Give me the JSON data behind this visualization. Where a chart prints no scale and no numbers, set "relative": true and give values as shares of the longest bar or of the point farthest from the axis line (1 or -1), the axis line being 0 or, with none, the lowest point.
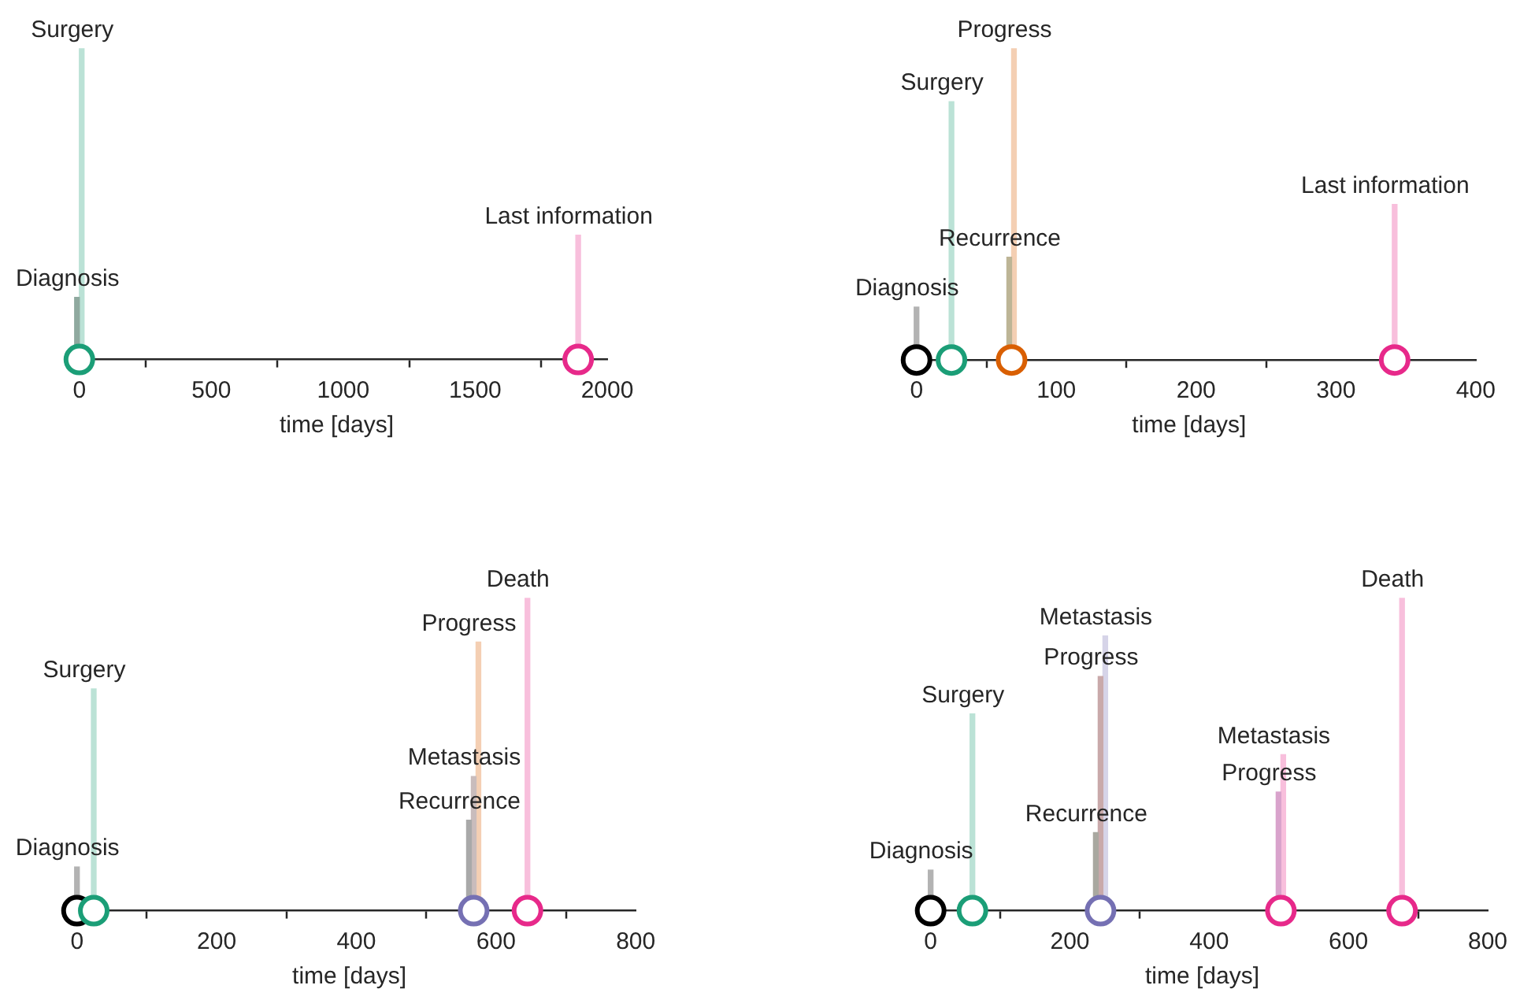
{
  "chart_data": [
    {
      "type": "bar",
      "relative": true,
      "x": [
        0,
        1890
      ],
      "xlim": [
        -50,
        2000
      ],
      "xticks": [
        0,
        500,
        1000,
        1500,
        2000
      ],
      "xlabel": "time [days]",
      "tick_labels": "x",
      "grid": false,
      "marker": "circle",
      "series": [
        {
          "name": "Diagnosis",
          "values": [
            0.2,
            null
          ],
          "color": "#8fa99f"
        },
        {
          "name": "Surgery",
          "values": [
            1,
            null
          ],
          "color": "#bbe2d6"
        },
        {
          "name": "Last information",
          "values": [
            null,
            0.4
          ],
          "color": "#f8bfdc"
        },
        {
          "type": "scatter",
          "values": [
            0,
            0
          ],
          "colors": [
            "#1b9e77",
            "#e7298a"
          ]
        }
      ]
    },
    {
      "type": "bar",
      "relative": true,
      "x": [
        0,
        25,
        68,
        342
      ],
      "xlim": [
        -10,
        400
      ],
      "xticks": [
        0,
        100,
        200,
        300,
        400
      ],
      "xlabel": "time [days]",
      "tick_labels": "x",
      "grid": false,
      "marker": "circle",
      "series": [
        {
          "name": "Diagnosis",
          "values": [
            0.17,
            null,
            null,
            null
          ],
          "color": "#b3b3b3"
        },
        {
          "name": "Surgery",
          "values": [
            null,
            0.83,
            null,
            null
          ],
          "color": "#bbe2d6"
        },
        {
          "name": "Recurrence",
          "values": [
            null,
            null,
            0.33,
            null
          ],
          "color": "#bdb596"
        },
        {
          "name": "Progress",
          "values": [
            null,
            null,
            1,
            null
          ],
          "color": "#f4cfb3"
        },
        {
          "name": "Last information",
          "values": [
            null,
            null,
            null,
            0.5
          ],
          "color": "#f8bfdc"
        },
        {
          "type": "scatter",
          "values": [
            0,
            0,
            0,
            0
          ],
          "colors": [
            "#000000",
            "#1b9e77",
            "#d95f02",
            "#e7298a"
          ]
        }
      ]
    },
    {
      "type": "bar",
      "relative": true,
      "x": [
        0,
        24,
        568,
        645
      ],
      "xlim": [
        -20,
        800
      ],
      "xticks": [
        0,
        200,
        400,
        600,
        800
      ],
      "xlabel": "time [days]",
      "tick_labels": "x",
      "grid": false,
      "marker": "circle",
      "series": [
        {
          "name": "Diagnosis",
          "values": [
            0.14,
            null,
            null,
            null
          ],
          "color": "#b3b3b3"
        },
        {
          "name": "Surgery",
          "values": [
            null,
            0.71,
            null,
            null
          ],
          "color": "#bbe2d6"
        },
        {
          "name": "Recurrence",
          "values": [
            null,
            null,
            0.29,
            null
          ],
          "color": "#a9a9a9"
        },
        {
          "name": "Metastasis",
          "values": [
            null,
            null,
            0.43,
            null
          ],
          "color": "#c9bcbc"
        },
        {
          "name": "Progress",
          "values": [
            null,
            null,
            0.86,
            null
          ],
          "color": "#f4cfb3"
        },
        {
          "name": "Death",
          "values": [
            null,
            null,
            null,
            1
          ],
          "color": "#f8bfdc"
        },
        {
          "type": "scatter",
          "values": [
            0,
            0,
            0,
            0
          ],
          "colors": [
            "#000000",
            "#1b9e77",
            "#7570b3",
            "#e7298a"
          ]
        }
      ]
    },
    {
      "type": "bar",
      "relative": true,
      "x": [
        0,
        60,
        244,
        503,
        677
      ],
      "xlim": [
        -20,
        800
      ],
      "xticks": [
        0,
        200,
        400,
        600,
        800
      ],
      "xlabel": "time [days]",
      "tick_labels": "x",
      "grid": false,
      "marker": "circle",
      "series": [
        {
          "name": "Diagnosis",
          "values": [
            0.13,
            null,
            null,
            null,
            null
          ],
          "color": "#b3b3b3"
        },
        {
          "name": "Surgery",
          "values": [
            null,
            0.63,
            null,
            null,
            null
          ],
          "color": "#bbe2d6"
        },
        {
          "name": "Recurrence",
          "values": [
            null,
            null,
            0.25,
            null,
            null
          ],
          "color": "#a9a8a0"
        },
        {
          "name": "Progress",
          "values": [
            null,
            null,
            0.75,
            0.38,
            null
          ],
          "colors": [
            null,
            null,
            "#c9a9aa",
            "#d9a3cc",
            null
          ]
        },
        {
          "name": "Metastasis",
          "values": [
            null,
            null,
            0.88,
            0.5,
            null
          ],
          "colors": [
            null,
            null,
            "#d6d4e8",
            "#f8bfdc",
            null
          ]
        },
        {
          "name": "Death",
          "values": [
            null,
            null,
            null,
            null,
            1
          ],
          "color": "#f8bfdc"
        },
        {
          "type": "scatter",
          "values": [
            0,
            0,
            0,
            0,
            0
          ],
          "colors": [
            "#000000",
            "#1b9e77",
            "#7570b3",
            "#e7298a",
            "#e7298a"
          ]
        }
      ]
    }
  ]
}
